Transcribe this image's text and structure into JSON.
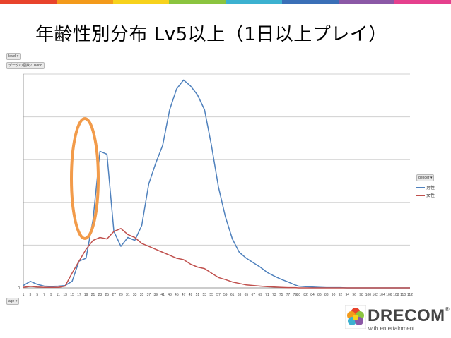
{
  "slide": {
    "title": "年齢性別分布 Lv5以上（1日以上プレイ）",
    "accent_colors": [
      "#e8432c",
      "#f39a1b",
      "#f7d21c",
      "#8bc43f",
      "#3cb1d0",
      "#3a6fb7",
      "#8b58a6",
      "#e5408d"
    ]
  },
  "pivot": {
    "level_button": "level",
    "data_button": "データの個数 / userid",
    "gender_button": "gender",
    "age_button": "age"
  },
  "logo": {
    "name": "DRECOM",
    "tagline": "with entertainment"
  },
  "chart_data": {
    "type": "line",
    "title": "",
    "xlabel": "",
    "ylabel": "",
    "y_tick_labels": [
      "0"
    ],
    "ylim": [
      0,
      7200
    ],
    "grid": "horizontal",
    "legend_position": "right",
    "x_tick_labels": [
      "1",
      "3",
      "5",
      "7",
      "9",
      "11",
      "13",
      "15",
      "17",
      "19",
      "21",
      "23",
      "25",
      "27",
      "29",
      "31",
      "33",
      "35",
      "37",
      "39",
      "41",
      "43",
      "45",
      "47",
      "49",
      "51",
      "53",
      "55",
      "57",
      "59",
      "61",
      "63",
      "65",
      "67",
      "69",
      "71",
      "73",
      "75",
      "77",
      "79",
      "80",
      "82",
      "84",
      "86",
      "88",
      "90",
      "92",
      "94",
      "96",
      "98",
      "100",
      "102",
      "104",
      "106",
      "108",
      "110",
      "112"
    ],
    "x": [
      1,
      3,
      5,
      7,
      9,
      11,
      13,
      15,
      17,
      19,
      21,
      23,
      25,
      27,
      29,
      31,
      33,
      35,
      37,
      39,
      41,
      43,
      45,
      47,
      49,
      51,
      53,
      55,
      57,
      59,
      61,
      63,
      65,
      67,
      69,
      71,
      73,
      75,
      77,
      79,
      80,
      82,
      84,
      86,
      88,
      90,
      92,
      94,
      96,
      98,
      100,
      102,
      104,
      106,
      108,
      110,
      112
    ],
    "series": [
      {
        "name": "男性",
        "color": "#4f81bd",
        "values": [
          80,
          220,
          120,
          60,
          50,
          60,
          80,
          220,
          900,
          1000,
          2300,
          4600,
          4500,
          1900,
          1400,
          1700,
          1600,
          2100,
          3500,
          4200,
          4800,
          6000,
          6700,
          7000,
          6800,
          6500,
          6000,
          4800,
          3400,
          2400,
          1650,
          1200,
          1000,
          850,
          700,
          520,
          400,
          290,
          200,
          100,
          60,
          40,
          30,
          20,
          10,
          10,
          10,
          0,
          0,
          0,
          0,
          0,
          0,
          0,
          0,
          0,
          0
        ]
      },
      {
        "name": "女性",
        "color": "#c0504d",
        "values": [
          20,
          50,
          30,
          20,
          20,
          20,
          60,
          500,
          900,
          1300,
          1600,
          1700,
          1650,
          1900,
          2000,
          1800,
          1700,
          1500,
          1400,
          1300,
          1200,
          1100,
          1000,
          950,
          800,
          700,
          650,
          500,
          350,
          280,
          200,
          150,
          100,
          80,
          60,
          40,
          30,
          20,
          10,
          10,
          0,
          0,
          0,
          0,
          0,
          0,
          0,
          0,
          0,
          0,
          0,
          0,
          0,
          0,
          0,
          0,
          0
        ]
      }
    ]
  }
}
